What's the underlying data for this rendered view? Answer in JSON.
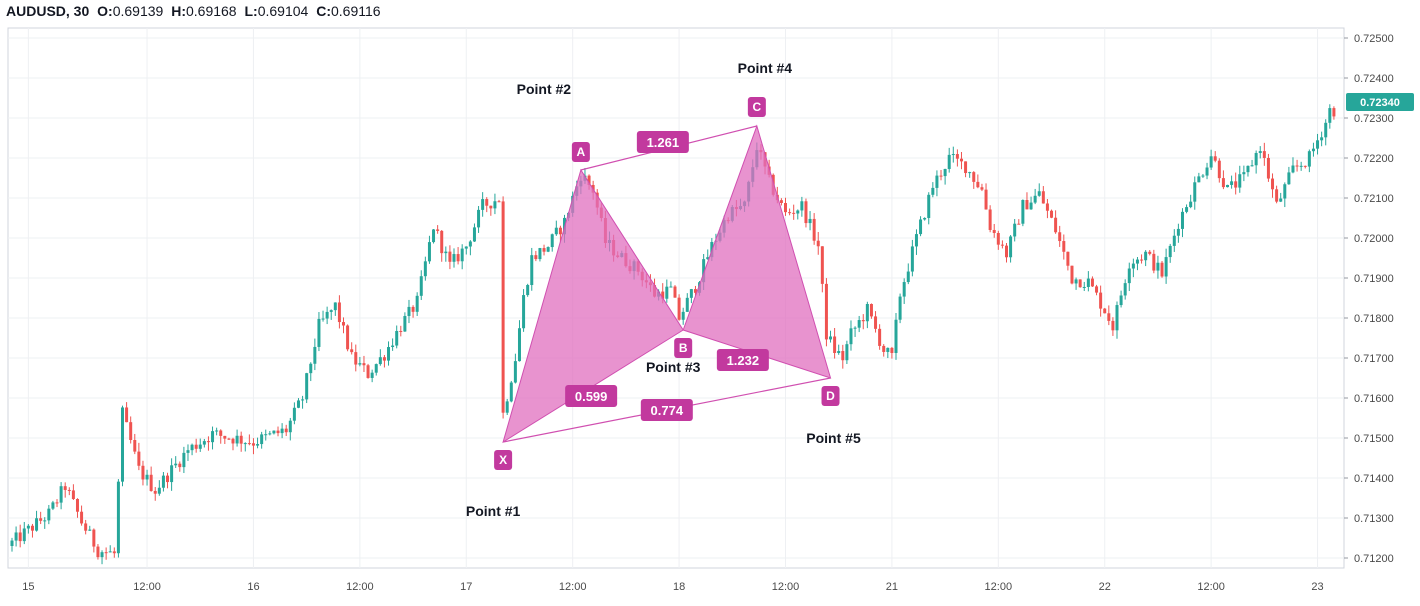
{
  "header": {
    "symbol": "AUDUSD, 30",
    "open_label": "O:",
    "open": "0.69139",
    "high_label": "H:",
    "high": "0.69168",
    "low_label": "L:",
    "low": "0.69104",
    "close_label": "C:",
    "close": "0.69116"
  },
  "colors": {
    "up": "#26a69a",
    "down": "#ef5350",
    "pattern_fill": "#e06fbf",
    "pattern_stroke": "#d04fb0",
    "tag": "#c2399e",
    "price_tag": "#26a69a",
    "grid": "#eef0f3"
  },
  "current_price": "0.72340",
  "chart_data": {
    "type": "candlestick",
    "title": "",
    "ylim": [
      0.71175,
      0.72525
    ],
    "y_ticks": [
      "0.71200",
      "0.71300",
      "0.71400",
      "0.71500",
      "0.71600",
      "0.71700",
      "0.71800",
      "0.71900",
      "0.72000",
      "0.72100",
      "0.72200",
      "0.72300",
      "0.72400",
      "0.72500"
    ],
    "x_ticks": [
      {
        "i": 4,
        "label": "15"
      },
      {
        "i": 33,
        "label": "12:00"
      },
      {
        "i": 59,
        "label": "16"
      },
      {
        "i": 85,
        "label": "12:00"
      },
      {
        "i": 111,
        "label": "17"
      },
      {
        "i": 137,
        "label": "12:00"
      },
      {
        "i": 163,
        "label": "18"
      },
      {
        "i": 189,
        "label": "12:00"
      },
      {
        "i": 215,
        "label": "21"
      },
      {
        "i": 241,
        "label": "12:00"
      },
      {
        "i": 267,
        "label": "22"
      },
      {
        "i": 293,
        "label": "12:00"
      },
      {
        "i": 319,
        "label": "23"
      }
    ],
    "grid": true,
    "candle_count": 324,
    "anchors": [
      [
        0,
        0.7123
      ],
      [
        10,
        0.7131
      ],
      [
        14,
        0.7138
      ],
      [
        18,
        0.7129
      ],
      [
        22,
        0.7122
      ],
      [
        26,
        0.7121
      ],
      [
        28,
        0.7156
      ],
      [
        32,
        0.7142
      ],
      [
        36,
        0.7137
      ],
      [
        40,
        0.7142
      ],
      [
        44,
        0.7147
      ],
      [
        50,
        0.7151
      ],
      [
        60,
        0.7149
      ],
      [
        68,
        0.7152
      ],
      [
        72,
        0.716
      ],
      [
        76,
        0.7178
      ],
      [
        80,
        0.7183
      ],
      [
        84,
        0.717
      ],
      [
        88,
        0.7166
      ],
      [
        92,
        0.7171
      ],
      [
        96,
        0.7178
      ],
      [
        100,
        0.7184
      ],
      [
        104,
        0.7203
      ],
      [
        108,
        0.7193
      ],
      [
        112,
        0.7198
      ],
      [
        116,
        0.7208
      ],
      [
        120,
        0.721
      ],
      [
        121,
        0.7156
      ],
      [
        124,
        0.717
      ],
      [
        126,
        0.7185
      ],
      [
        128,
        0.7195
      ],
      [
        132,
        0.7198
      ],
      [
        136,
        0.7204
      ],
      [
        140,
        0.7216
      ],
      [
        143,
        0.7212
      ],
      [
        146,
        0.7199
      ],
      [
        150,
        0.7195
      ],
      [
        154,
        0.7192
      ],
      [
        158,
        0.7186
      ],
      [
        162,
        0.7187
      ],
      [
        164,
        0.718
      ],
      [
        168,
        0.7188
      ],
      [
        172,
        0.7198
      ],
      [
        176,
        0.7206
      ],
      [
        180,
        0.7208
      ],
      [
        183,
        0.7223
      ],
      [
        186,
        0.7214
      ],
      [
        190,
        0.7206
      ],
      [
        194,
        0.7208
      ],
      [
        198,
        0.7198
      ],
      [
        200,
        0.7176
      ],
      [
        202,
        0.7172
      ],
      [
        204,
        0.717
      ],
      [
        206,
        0.7176
      ],
      [
        210,
        0.7182
      ],
      [
        214,
        0.7172
      ],
      [
        216,
        0.717
      ],
      [
        218,
        0.7186
      ],
      [
        222,
        0.72
      ],
      [
        226,
        0.7213
      ],
      [
        230,
        0.722
      ],
      [
        234,
        0.7218
      ],
      [
        238,
        0.7212
      ],
      [
        240,
        0.7203
      ],
      [
        244,
        0.7196
      ],
      [
        248,
        0.7208
      ],
      [
        252,
        0.7211
      ],
      [
        256,
        0.7202
      ],
      [
        260,
        0.719
      ],
      [
        264,
        0.7189
      ],
      [
        268,
        0.7182
      ],
      [
        270,
        0.7178
      ],
      [
        274,
        0.7194
      ],
      [
        278,
        0.7196
      ],
      [
        282,
        0.7191
      ],
      [
        286,
        0.7204
      ],
      [
        290,
        0.7213
      ],
      [
        294,
        0.7221
      ],
      [
        298,
        0.7212
      ],
      [
        302,
        0.7215
      ],
      [
        306,
        0.7223
      ],
      [
        310,
        0.7208
      ],
      [
        314,
        0.7217
      ],
      [
        318,
        0.722
      ],
      [
        322,
        0.7229
      ],
      [
        323,
        0.7232
      ]
    ],
    "harmonic_pattern": {
      "points": [
        {
          "tag": "X",
          "label": "Point #1",
          "i": 120,
          "price": 0.7149
        },
        {
          "tag": "A",
          "label": "Point #2",
          "i": 139,
          "price": 0.7217
        },
        {
          "tag": "B",
          "label": "Point #3",
          "i": 164,
          "price": 0.7177
        },
        {
          "tag": "C",
          "label": "Point #4",
          "i": 182,
          "price": 0.7228
        },
        {
          "tag": "D",
          "label": "Point #5",
          "i": 200,
          "price": 0.7165
        }
      ],
      "ratios": [
        {
          "from": "A",
          "to": "C",
          "value": "1.261"
        },
        {
          "from": "X",
          "to": "B",
          "value": "0.599"
        },
        {
          "from": "B",
          "to": "D",
          "value": "1.232"
        },
        {
          "from": "X",
          "to": "D",
          "value": "0.774"
        }
      ]
    }
  }
}
